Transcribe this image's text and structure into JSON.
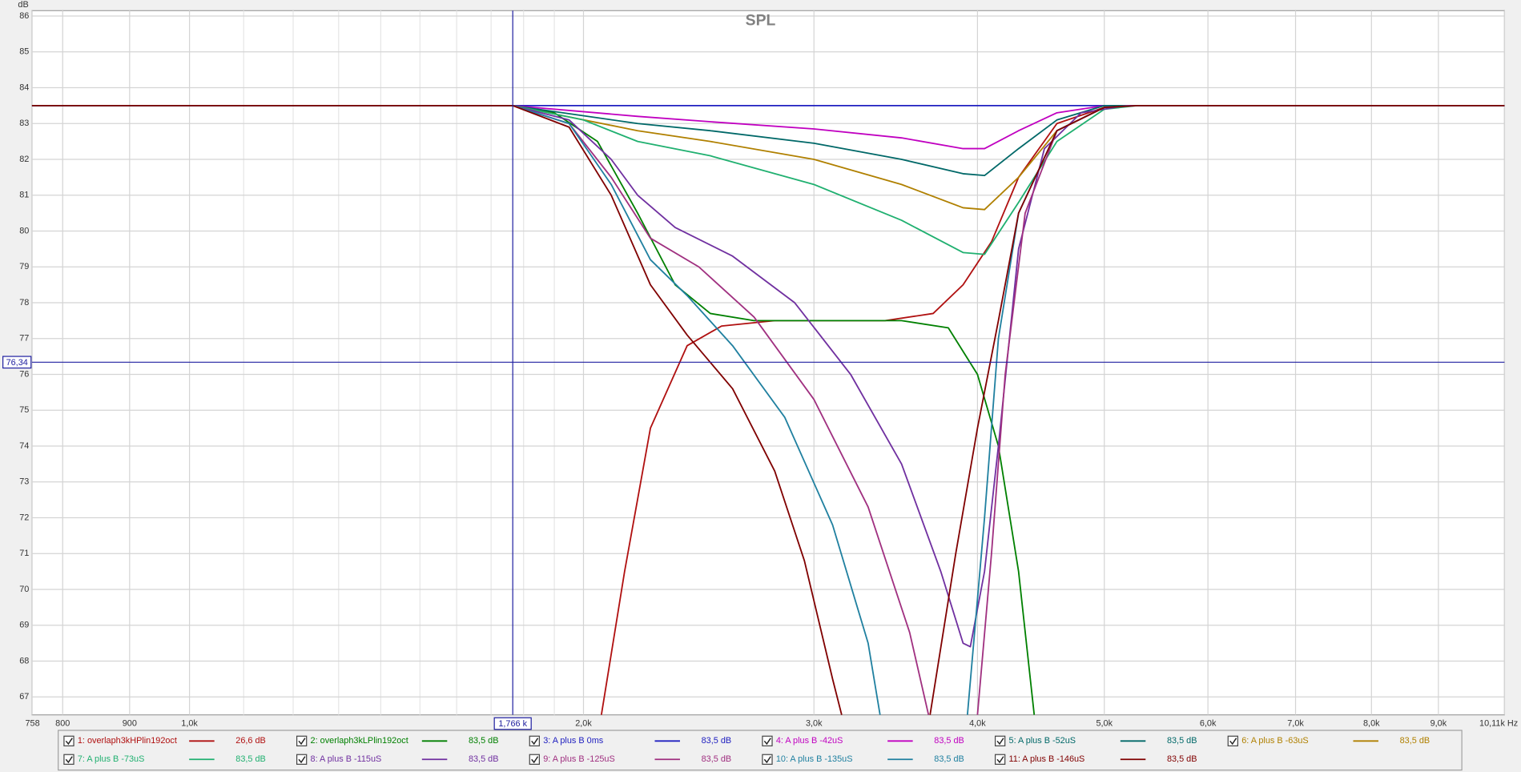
{
  "chart_data": {
    "type": "line",
    "title": "SPL",
    "y_unit": "dB",
    "xscale": "log",
    "grid": true,
    "xlim": [
      758,
      10110
    ],
    "ylim": [
      66.5,
      86.15
    ],
    "xticks": [
      {
        "value": 758,
        "label": "758"
      },
      800,
      900,
      {
        "value": 1000,
        "label": "1,0k"
      },
      {
        "value": 2000,
        "label": "2,0k"
      },
      {
        "value": 3000,
        "label": "3,0k"
      },
      {
        "value": 4000,
        "label": "4,0k"
      },
      {
        "value": 5000,
        "label": "5,0k"
      },
      {
        "value": 6000,
        "label": "6,0k"
      },
      {
        "value": 7000,
        "label": "7,0k"
      },
      {
        "value": 8000,
        "label": "8,0k"
      },
      {
        "value": 9000,
        "label": "9,0k"
      },
      {
        "value": 10110,
        "label": "10,11k Hz"
      }
    ],
    "x_minor_ticks": [
      1100,
      1200,
      1300,
      1400,
      1500,
      1600,
      1700,
      1800,
      1900
    ],
    "yticks": [
      67,
      68,
      69,
      70,
      71,
      72,
      73,
      74,
      75,
      76,
      77,
      78,
      79,
      80,
      81,
      82,
      83,
      84,
      85,
      86
    ],
    "cursor": {
      "x": 1766,
      "x_label": "1,766 k",
      "y": 76.34,
      "y_label": "76,34"
    },
    "series": [
      {
        "name": "1: overlaph3kHPlin192oct",
        "color": "#b01010",
        "legend_value": "26,6 dB",
        "x": [
          2064,
          2150,
          2250,
          2400,
          2550,
          2800,
          3400,
          3700,
          3900,
          4100,
          4300,
          4600,
          5000,
          5300,
          10110
        ],
        "values": [
          66.5,
          70.5,
          74.5,
          76.8,
          77.35,
          77.5,
          77.5,
          77.7,
          78.5,
          79.7,
          81.5,
          83.0,
          83.45,
          83.5,
          83.5
        ]
      },
      {
        "name": "2: overlaph3kLPlin192oct",
        "color": "#008000",
        "legend_value": "83,5 dB",
        "x": [
          758,
          1766,
          1900,
          2050,
          2200,
          2350,
          2500,
          2700,
          3500,
          3800,
          4000,
          4150,
          4300,
          4420
        ],
        "values": [
          83.5,
          83.5,
          83.3,
          82.5,
          80.5,
          78.5,
          77.7,
          77.5,
          77.5,
          77.3,
          76.0,
          74.0,
          70.5,
          66.5
        ]
      },
      {
        "name": "3: A plus B 0ms",
        "color": "#2020c0",
        "legend_value": "83,5 dB",
        "x": [
          758,
          10110
        ],
        "values": [
          83.5,
          83.5
        ]
      },
      {
        "name": "4: A plus B -42uS",
        "color": "#c000c0",
        "legend_value": "83,5 dB",
        "x": [
          758,
          1766,
          2200,
          2500,
          3000,
          3500,
          3900,
          4050,
          4300,
          4600,
          5000,
          10110
        ],
        "values": [
          83.5,
          83.5,
          83.2,
          83.05,
          82.85,
          82.6,
          82.3,
          82.3,
          82.8,
          83.3,
          83.5,
          83.5
        ]
      },
      {
        "name": "5: A plus B -52uS",
        "color": "#006868",
        "legend_value": "83,5 dB",
        "x": [
          758,
          1766,
          2200,
          2500,
          3000,
          3500,
          3900,
          4050,
          4300,
          4600,
          5000,
          10110
        ],
        "values": [
          83.5,
          83.5,
          83.0,
          82.8,
          82.45,
          82.0,
          81.6,
          81.55,
          82.3,
          83.1,
          83.5,
          83.5
        ]
      },
      {
        "name": "6: A plus B -63uS",
        "color": "#b08000",
        "legend_value": "83,5 dB",
        "x": [
          758,
          1766,
          2200,
          2500,
          3000,
          3500,
          3900,
          4050,
          4300,
          4600,
          5000,
          5300,
          10110
        ],
        "values": [
          83.5,
          83.5,
          82.8,
          82.5,
          82.0,
          81.3,
          80.65,
          80.6,
          81.5,
          82.8,
          83.45,
          83.5,
          83.5
        ]
      },
      {
        "name": "7: A plus B -73uS",
        "color": "#20b070",
        "legend_value": "83,5 dB",
        "x": [
          758,
          1766,
          2000,
          2200,
          2500,
          3000,
          3500,
          3900,
          4050,
          4300,
          4600,
          5000,
          5300,
          10110
        ],
        "values": [
          83.5,
          83.5,
          83.1,
          82.5,
          82.1,
          81.3,
          80.3,
          79.4,
          79.35,
          80.8,
          82.5,
          83.4,
          83.5,
          83.5
        ]
      },
      {
        "name": "8: A plus B -115uS",
        "color": "#7030a0",
        "legend_value": "83,5 dB",
        "x": [
          758,
          1766,
          1950,
          2100,
          2200,
          2350,
          2600,
          2900,
          3200,
          3500,
          3750,
          3900,
          3950,
          4050,
          4150,
          4300,
          4500,
          4800,
          5200,
          10110
        ],
        "values": [
          83.5,
          83.5,
          83.1,
          82.0,
          81.0,
          80.1,
          79.3,
          78.0,
          76.0,
          73.5,
          70.5,
          68.5,
          68.4,
          70.5,
          74.0,
          79.5,
          82.3,
          83.3,
          83.5,
          83.5
        ]
      },
      {
        "name": "9: A plus B -125uS",
        "color": "#a03080",
        "legend_value": "83,5 dB",
        "x": [
          758,
          1766,
          1950,
          2100,
          2250,
          2450,
          2700,
          3000,
          3300,
          3550,
          3670,
          3800,
          4000,
          4100,
          4200,
          4350,
          4600,
          5000,
          5300,
          10110
        ],
        "values": [
          83.5,
          83.5,
          83.0,
          81.5,
          79.8,
          79.0,
          77.6,
          75.3,
          72.3,
          68.8,
          66.5,
          null,
          66.5,
          71.0,
          76.0,
          80.5,
          82.8,
          83.45,
          83.5,
          83.5
        ]
      },
      {
        "name": "10: A plus B -135uS",
        "color": "#2080a0",
        "legend_value": "83,5 dB",
        "x": [
          758,
          1766,
          1950,
          2100,
          2250,
          2400,
          2600,
          2850,
          3100,
          3300,
          3370,
          3600,
          3930,
          4050,
          4150,
          4300,
          4600,
          5000,
          5300,
          10110
        ],
        "values": [
          83.5,
          83.5,
          83.0,
          81.3,
          79.2,
          78.2,
          76.8,
          74.8,
          71.8,
          68.5,
          66.5,
          null,
          66.5,
          72.0,
          77.0,
          80.5,
          82.8,
          83.45,
          83.5,
          83.5
        ]
      },
      {
        "name": "11: A plus B -146uS",
        "color": "#800000",
        "legend_value": "83,5 dB",
        "x": [
          758,
          1766,
          1950,
          2100,
          2250,
          2400,
          2600,
          2800,
          2950,
          3100,
          3150,
          3400,
          3680,
          3850,
          4000,
          4150,
          4300,
          4600,
          5000,
          5300,
          10110
        ],
        "values": [
          83.5,
          83.5,
          82.9,
          81.0,
          78.5,
          77.1,
          75.6,
          73.3,
          70.8,
          67.5,
          66.5,
          null,
          66.5,
          71.0,
          74.5,
          77.5,
          80.5,
          82.8,
          83.45,
          83.5,
          83.5
        ]
      }
    ]
  }
}
